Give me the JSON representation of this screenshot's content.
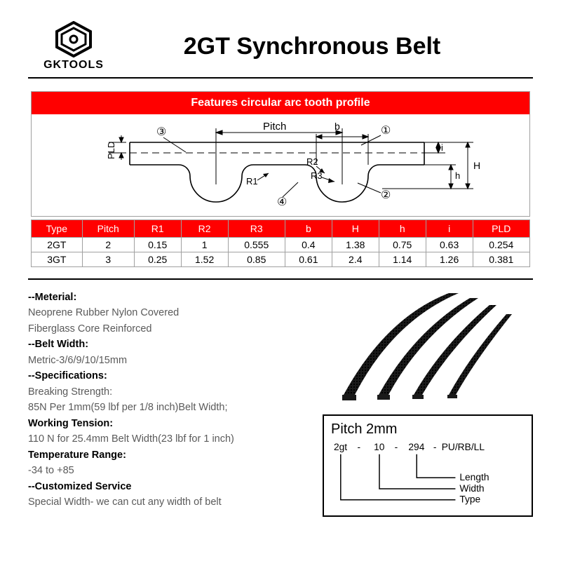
{
  "header": {
    "brand": "GKTOOLS",
    "title": "2GT Synchronous Belt"
  },
  "feature": {
    "header": "Features circular arc tooth profile",
    "diagram": {
      "labels": {
        "pitch": "Pitch",
        "b": "b",
        "pld": "PLD",
        "R1": "R1",
        "R2": "R2",
        "R3": "R3",
        "H": "H",
        "h": "h",
        "i": "i",
        "c1": "①",
        "c2": "②",
        "c3": "③",
        "c4": "④"
      },
      "colors": {
        "stroke": "#000000",
        "fill": "#ffffff",
        "dim": "#000000"
      }
    }
  },
  "table": {
    "columns": [
      "Type",
      "Pitch",
      "R1",
      "R2",
      "R3",
      "b",
      "H",
      "h",
      "i",
      "PLD"
    ],
    "rows": [
      [
        "2GT",
        "2",
        "0.15",
        "1",
        "0.555",
        "0.4",
        "1.38",
        "0.75",
        "0.63",
        "0.254"
      ],
      [
        "3GT",
        "3",
        "0.25",
        "1.52",
        "0.85",
        "0.61",
        "2.4",
        "1.14",
        "1.26",
        "0.381"
      ]
    ],
    "header_bg": "#ff0000",
    "header_fg": "#ffffff",
    "border": "#a0a0a0"
  },
  "specs": {
    "material_hd": "--Meterial:",
    "material_1": "Neoprene Rubber Nylon Covered",
    "material_2": "Fiberglass Core Reinforced",
    "beltwidth_hd": "--Belt Width:",
    "beltwidth_1": "Metric-3/6/9/10/15mm",
    "spec_hd": "--Specifications:",
    "break_hd": "Breaking Strength:",
    "break_1": "85N Per 1mm(59 lbf per 1/8 inch)Belt Width;",
    "tension_hd": "Working Tension:",
    "tension_1": "110 N for 25.4mm Belt Width(23 lbf for 1 inch)",
    "temp_hd": "Temperature Range:",
    "temp_1": "-34 to +85",
    "custom_hd": "--Customized Service",
    "custom_1": "Special Width- we can cut any width of belt"
  },
  "code": {
    "title": "Pitch 2mm",
    "parts": [
      "2gt",
      "10",
      "294",
      "PU/RB/LL"
    ],
    "labels": {
      "type": "Type",
      "width": "Width",
      "length": "Length"
    }
  },
  "colors": {
    "accent": "#ff0000",
    "text": "#000000",
    "muted": "#5a5a5a",
    "bg": "#ffffff"
  }
}
